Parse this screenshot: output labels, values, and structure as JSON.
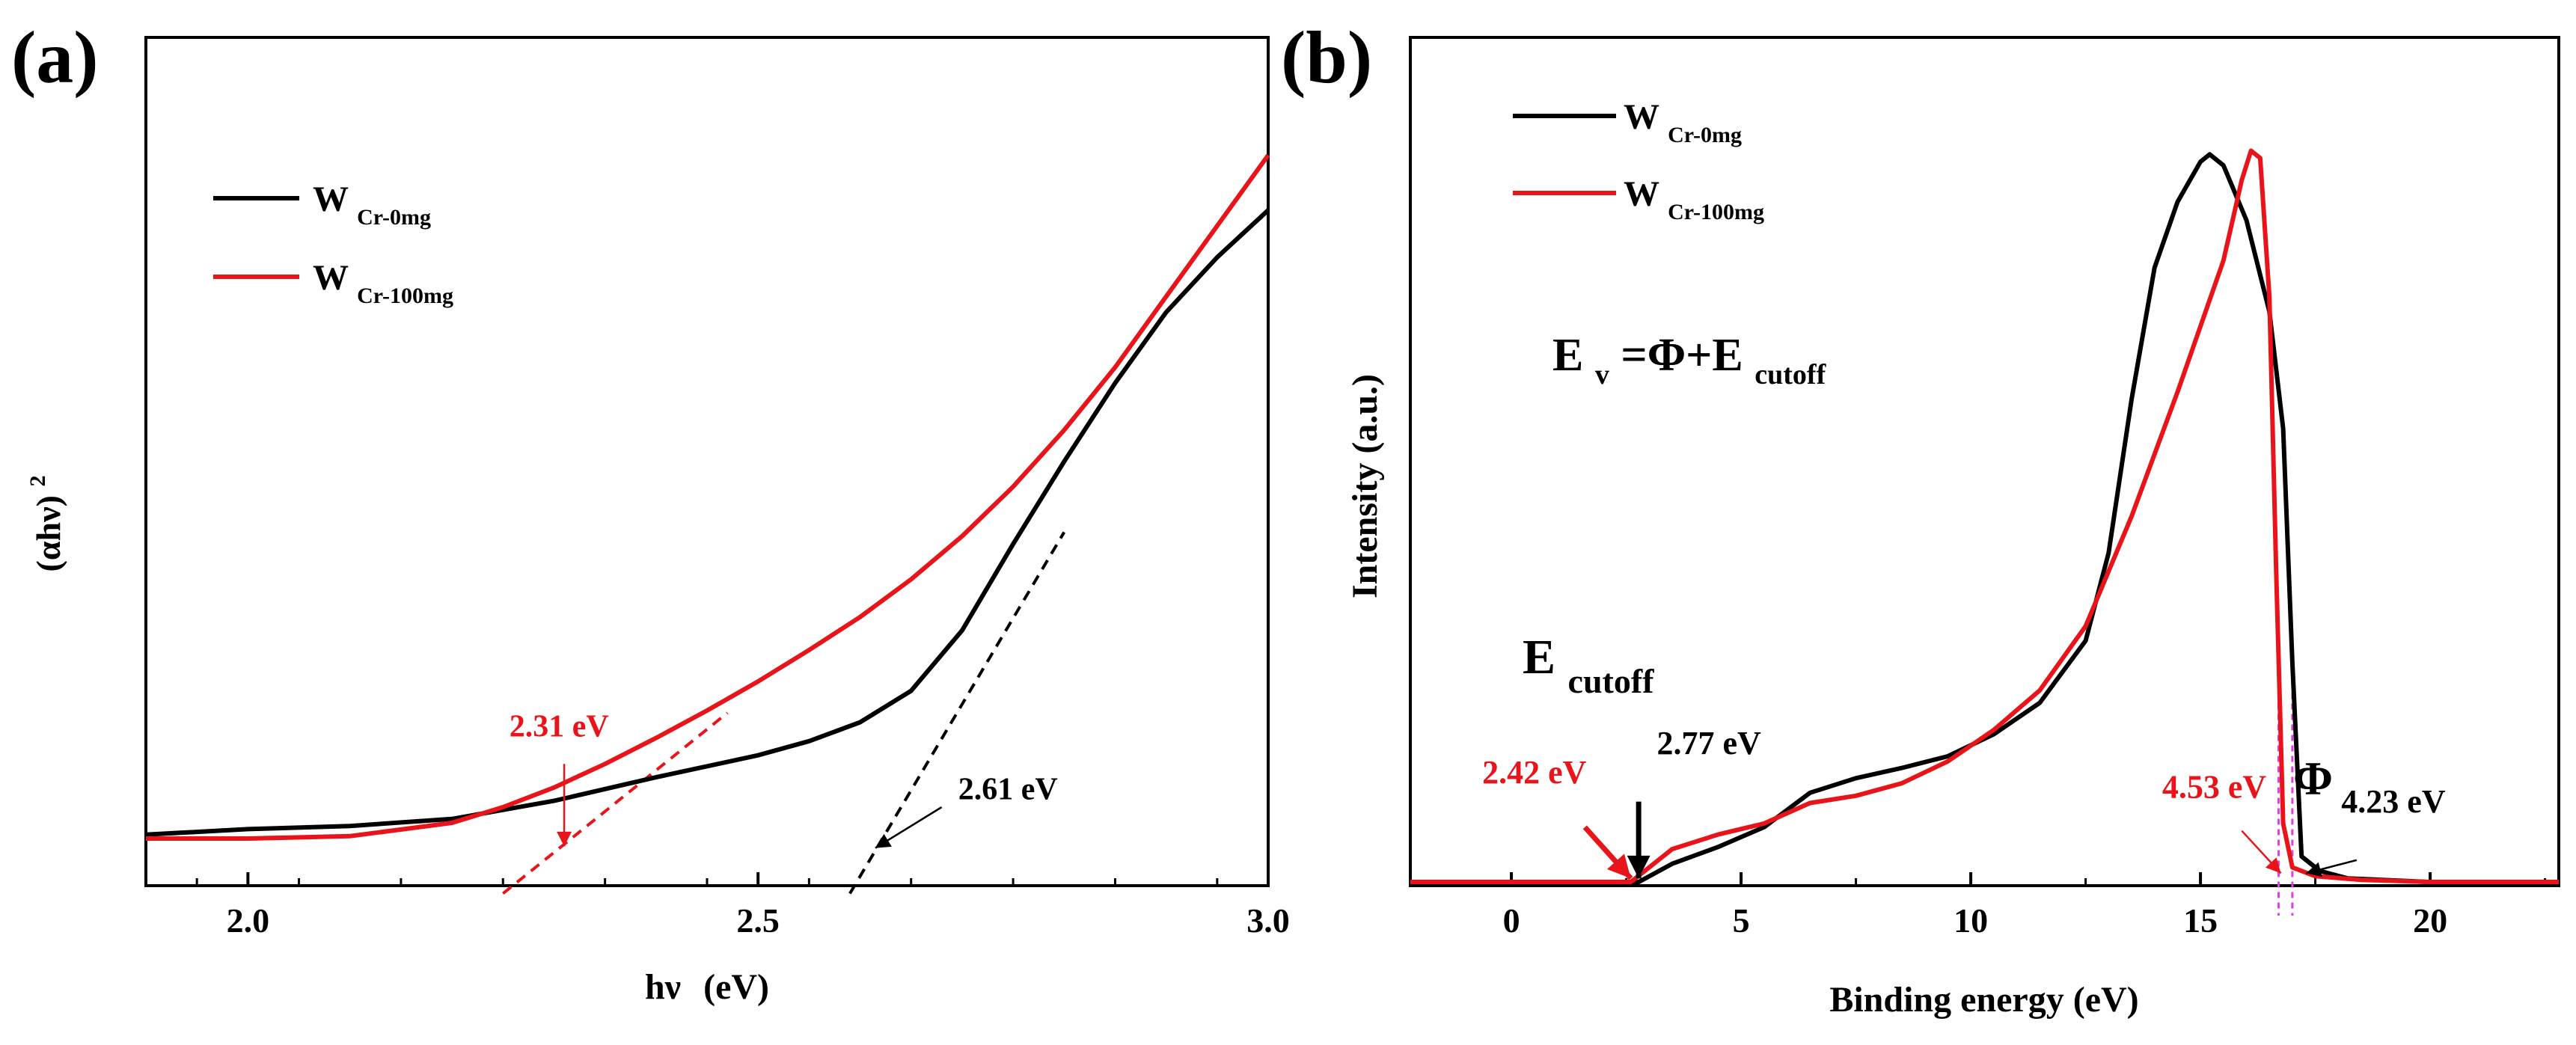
{
  "chart_data": [
    {
      "panel": "(a)",
      "type": "line",
      "xlabel_main": "hν",
      "xlabel_unit": "(eV)",
      "ylabel_base": "(αhν)",
      "ylabel_sup": "2",
      "xlim": [
        1.9,
        3.0
      ],
      "ylim": [
        0,
        1.0
      ],
      "xticks": [
        {
          "v": 2.0,
          "label": "2.0"
        },
        {
          "v": 2.5,
          "label": "2.5"
        },
        {
          "v": 3.0,
          "label": "3.0"
        }
      ],
      "legend_position": "top-left",
      "series": [
        {
          "name_base": "W",
          "name_sub": "Cr-0mg",
          "color": "#000000",
          "x": [
            1.9,
            2.0,
            2.1,
            2.2,
            2.3,
            2.4,
            2.5,
            2.55,
            2.6,
            2.65,
            2.7,
            2.75,
            2.8,
            2.85,
            2.9,
            2.95,
            3.0
          ],
          "y": [
            0.005,
            0.012,
            0.016,
            0.025,
            0.048,
            0.078,
            0.106,
            0.124,
            0.148,
            0.188,
            0.265,
            0.375,
            0.48,
            0.58,
            0.67,
            0.74,
            0.8
          ]
        },
        {
          "name_base": "W",
          "name_sub": "Cr-100mg",
          "color": "#e8141a",
          "x": [
            1.9,
            2.0,
            2.1,
            2.2,
            2.25,
            2.3,
            2.35,
            2.4,
            2.45,
            2.5,
            2.55,
            2.6,
            2.65,
            2.7,
            2.75,
            2.8,
            2.85,
            2.9,
            2.95,
            3.0
          ],
          "y": [
            0.0,
            0.0,
            0.003,
            0.02,
            0.04,
            0.065,
            0.095,
            0.128,
            0.163,
            0.2,
            0.24,
            0.282,
            0.33,
            0.385,
            0.448,
            0.52,
            0.6,
            0.69,
            0.78,
            0.87
          ]
        }
      ],
      "tangents": [
        {
          "color": "#e8141a",
          "x": [
            2.25,
            2.47
          ],
          "y": [
            -0.07,
            0.16
          ]
        },
        {
          "color": "#000000",
          "x": [
            2.59,
            2.8
          ],
          "y": [
            -0.07,
            0.39
          ]
        }
      ],
      "annotations": [
        {
          "text": "2.31 eV",
          "color": "#e8141a",
          "text_x": 2.305,
          "text_y": 0.13,
          "arrow_from": [
            2.31,
            0.095
          ],
          "arrow_to": [
            2.31,
            -0.01
          ]
        },
        {
          "text": "2.61 eV",
          "color": "#000000",
          "text_x": 2.745,
          "text_y": 0.05,
          "arrow_from": [
            2.68,
            0.04
          ],
          "arrow_to": [
            2.615,
            -0.012
          ]
        }
      ]
    },
    {
      "panel": "(b)",
      "type": "line",
      "xlabel": "Binding energy (eV)",
      "ylabel": "Intensity (a.u.)",
      "xlim": [
        -2.2,
        22.8
      ],
      "ylim": [
        0,
        1.0
      ],
      "xticks": [
        {
          "v": 0,
          "label": "0"
        },
        {
          "v": 5,
          "label": "5"
        },
        {
          "v": 10,
          "label": "10"
        },
        {
          "v": 15,
          "label": "15"
        },
        {
          "v": 20,
          "label": "20"
        }
      ],
      "legend_position": "top-left",
      "series": [
        {
          "name_base": "W",
          "name_sub": "Cr-0mg",
          "color": "#000000",
          "x": [
            -2.2,
            0,
            2.0,
            2.77,
            3.5,
            4.5,
            5.5,
            6.5,
            7.5,
            8.5,
            9.5,
            10.5,
            11.5,
            12.5,
            13.0,
            13.5,
            14.0,
            14.5,
            15.0,
            15.2,
            15.5,
            16.0,
            16.5,
            16.8,
            17.0,
            17.2,
            17.6,
            18.2,
            20,
            22.8
          ],
          "y": [
            0.0,
            0.0,
            0.0,
            0.0,
            0.025,
            0.048,
            0.075,
            0.122,
            0.142,
            0.156,
            0.172,
            0.202,
            0.245,
            0.33,
            0.45,
            0.66,
            0.84,
            0.93,
            0.985,
            0.995,
            0.98,
            0.905,
            0.78,
            0.62,
            0.3,
            0.035,
            0.015,
            0.005,
            0.0,
            0.0
          ]
        },
        {
          "name_base": "W",
          "name_sub": "Cr-100mg",
          "color": "#e8141a",
          "x": [
            -2.2,
            0,
            2.0,
            2.6,
            3.5,
            4.5,
            5.5,
            6.5,
            7.5,
            8.5,
            9.5,
            10.5,
            11.5,
            12.5,
            13.5,
            14.5,
            15.0,
            15.5,
            15.9,
            16.1,
            16.3,
            16.5,
            16.65,
            16.8,
            17.0,
            17.5,
            18.5,
            20,
            22.8
          ],
          "y": [
            0.0,
            0.0,
            0.0,
            0.0,
            0.045,
            0.065,
            0.08,
            0.108,
            0.118,
            0.135,
            0.165,
            0.208,
            0.262,
            0.35,
            0.5,
            0.67,
            0.76,
            0.85,
            0.96,
            1.0,
            0.99,
            0.8,
            0.42,
            0.08,
            0.02,
            0.008,
            0.003,
            0.0,
            0.0
          ]
        }
      ],
      "markers": [
        {
          "x": 16.7,
          "color": "#e040e0"
        },
        {
          "x": 17.0,
          "color": "#e040e0"
        }
      ],
      "equation": {
        "a": "E",
        "a_sub": "v",
        "b": "=Φ+E",
        "b_sub": "cutoff"
      },
      "annotations": [
        {
          "text": "2.42 eV",
          "color": "#e8141a",
          "text_x": 0.5,
          "text_y": 0.135
        },
        {
          "text": "2.77 eV",
          "color": "#000000",
          "text_x": 4.3,
          "text_y": 0.175
        },
        {
          "text": "4.53 eV",
          "color": "#e8141a",
          "text_x": 15.3,
          "text_y": 0.115
        },
        {
          "text": "4.23 eV",
          "color": "#000000",
          "text_x": 19.2,
          "text_y": 0.095
        }
      ],
      "ecutoff_label": {
        "base": "E",
        "sub": "cutoff"
      },
      "phi_label": "Φ",
      "arrows": [
        {
          "color": "#e8141a",
          "from": [
            1.6,
            0.075
          ],
          "to": [
            2.6,
            0.005
          ],
          "thick": true
        },
        {
          "color": "#000000",
          "from": [
            2.77,
            0.11
          ],
          "to": [
            2.77,
            0.005
          ],
          "thick": true
        },
        {
          "color": "#e8141a",
          "from": [
            15.9,
            0.07
          ],
          "to": [
            16.75,
            0.012
          ],
          "thick": false
        },
        {
          "color": "#000000",
          "from": [
            18.4,
            0.03
          ],
          "to": [
            17.3,
            0.012
          ],
          "thick": false
        }
      ]
    }
  ]
}
